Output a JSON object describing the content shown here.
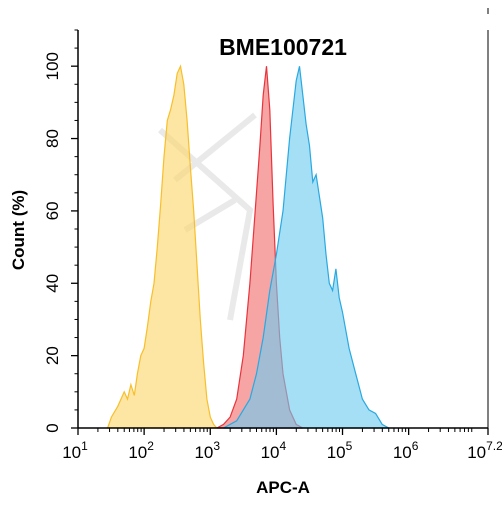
{
  "chart_data": {
    "type": "area",
    "title": "BME100721",
    "xlabel": "APC-A",
    "ylabel": "Count  (%)",
    "x_scale": "log10",
    "xlim": [
      10,
      15848932
    ],
    "ylim": [
      0,
      110
    ],
    "y_ticks": [
      0,
      20,
      40,
      60,
      80,
      100
    ],
    "x_ticks": [
      {
        "value": 10,
        "base": "10",
        "exp": "1"
      },
      {
        "value": 100,
        "base": "10",
        "exp": "2"
      },
      {
        "value": 1000,
        "base": "10",
        "exp": "3"
      },
      {
        "value": 10000,
        "base": "10",
        "exp": "4"
      },
      {
        "value": 100000,
        "base": "10",
        "exp": "5"
      },
      {
        "value": 1000000,
        "base": "10",
        "exp": "6"
      },
      {
        "value": 15848932,
        "base": "10",
        "exp": "7.2"
      }
    ],
    "grid": false,
    "legend": "none",
    "series": [
      {
        "color": "#f7bf2a",
        "fill": "#fbd56a",
        "x": [
          28,
          32,
          40,
          50,
          56,
          63,
          71,
          79,
          89,
          100,
          112,
          126,
          141,
          158,
          178,
          200,
          224,
          251,
          282,
          316,
          355,
          398,
          447,
          501,
          562,
          631,
          708,
          794,
          891,
          1000,
          1122,
          1259
        ],
        "y": [
          0,
          3,
          6,
          10,
          8,
          12,
          9,
          15,
          20,
          22,
          28,
          35,
          40,
          50,
          62,
          75,
          85,
          88,
          92,
          98,
          100,
          95,
          85,
          72,
          60,
          45,
          30,
          18,
          8,
          3,
          1,
          0
        ]
      },
      {
        "color": "#e8343c",
        "fill": "#f26c6c",
        "x": [
          1259,
          1585,
          1995,
          2512,
          3162,
          3981,
          5012,
          5623,
          6310,
          7079,
          7943,
          8913,
          10000,
          11220,
          12589,
          15849,
          19953,
          25119
        ],
        "y": [
          0,
          1,
          3,
          8,
          20,
          40,
          65,
          78,
          92,
          100,
          88,
          62,
          40,
          25,
          15,
          5,
          1,
          0
        ]
      },
      {
        "color": "#29a9e0",
        "fill": "#6ccbf0",
        "x": [
          1585,
          2512,
          3981,
          5012,
          6310,
          7943,
          10000,
          12589,
          15849,
          19953,
          22387,
          25119,
          28184,
          31623,
          35481,
          39811,
          44668,
          50119,
          56234,
          63096,
          70795,
          79433,
          89125,
          100000,
          125893,
          158489,
          199526,
          251189,
          316228,
          398107,
          501187
        ],
        "y": [
          0,
          2,
          8,
          15,
          25,
          38,
          48,
          60,
          80,
          96,
          100,
          92,
          84,
          78,
          68,
          70,
          64,
          58,
          48,
          40,
          38,
          44,
          36,
          32,
          22,
          15,
          8,
          5,
          4,
          1,
          0
        ]
      }
    ]
  }
}
